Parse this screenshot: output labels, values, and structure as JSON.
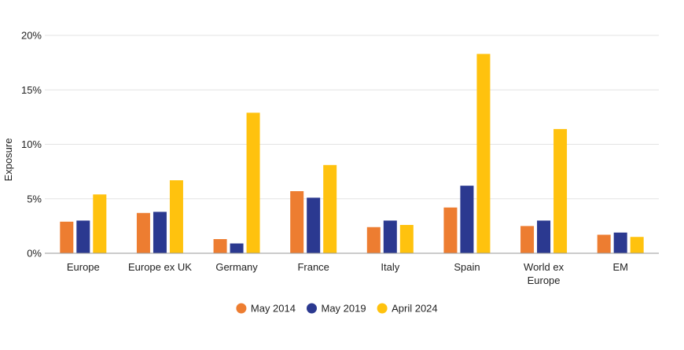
{
  "chart_data": {
    "type": "bar",
    "ylabel": "Exposure",
    "ylim": [
      0,
      20
    ],
    "yticks": [
      0,
      5,
      10,
      15,
      20
    ],
    "ytick_labels": [
      "0%",
      "5%",
      "10%",
      "15%",
      "20%"
    ],
    "grid": true,
    "legend_position": "bottom",
    "categories": [
      [
        "Europe"
      ],
      [
        "Europe ex UK"
      ],
      [
        "Germany"
      ],
      [
        "France"
      ],
      [
        "Italy"
      ],
      [
        "Spain"
      ],
      [
        "World ex",
        "Europe"
      ],
      [
        "EM"
      ]
    ],
    "series": [
      {
        "name": "May 2014",
        "color": "#ED7D31",
        "values": [
          2.9,
          3.7,
          1.3,
          5.7,
          2.4,
          4.2,
          2.5,
          1.7
        ]
      },
      {
        "name": "May 2019",
        "color": "#2B3990",
        "values": [
          3.0,
          3.8,
          0.9,
          5.1,
          3.0,
          6.2,
          3.0,
          1.9
        ]
      },
      {
        "name": "April 2024",
        "color": "#FFC20E",
        "values": [
          5.4,
          6.7,
          12.9,
          8.1,
          2.6,
          18.3,
          11.4,
          1.5
        ]
      }
    ]
  }
}
